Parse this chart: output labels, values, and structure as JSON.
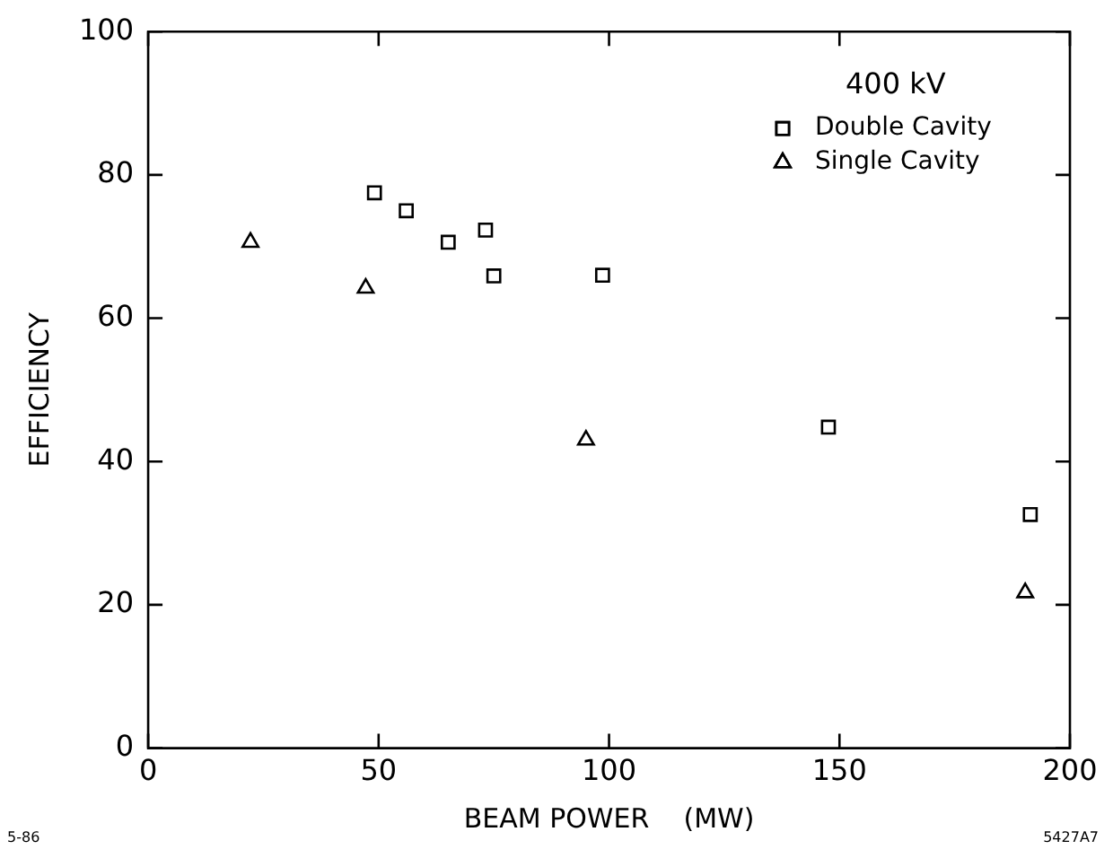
{
  "chart_data": {
    "type": "scatter",
    "xlabel": "BEAM POWER    (MW)",
    "ylabel": "EFFICIENCY",
    "legend_title": "400 kV",
    "legend": "top right",
    "xlim": [
      0,
      200
    ],
    "xticks": [
      0,
      50,
      100,
      150,
      200
    ],
    "ylim": [
      0,
      100
    ],
    "yticks": [
      0,
      20,
      40,
      60,
      80,
      100
    ],
    "series": [
      {
        "name": "Double Cavity",
        "color": "#000000",
        "marker": "square",
        "x": [
          49.1,
          56.0,
          65.1,
          73.2,
          75.0,
          98.6,
          147.6,
          191.4
        ],
        "values": [
          77.5,
          75.0,
          70.6,
          72.3,
          65.9,
          66.0,
          44.8,
          32.6
        ]
      },
      {
        "name": "Single Cavity",
        "color": "#000000",
        "marker": "triangle",
        "x": [
          22.2,
          47.2,
          95.0,
          190.3
        ],
        "values": [
          70.6,
          64.2,
          43.0,
          21.7
        ]
      }
    ],
    "annotations": [
      "5-86",
      "5427A7"
    ]
  }
}
